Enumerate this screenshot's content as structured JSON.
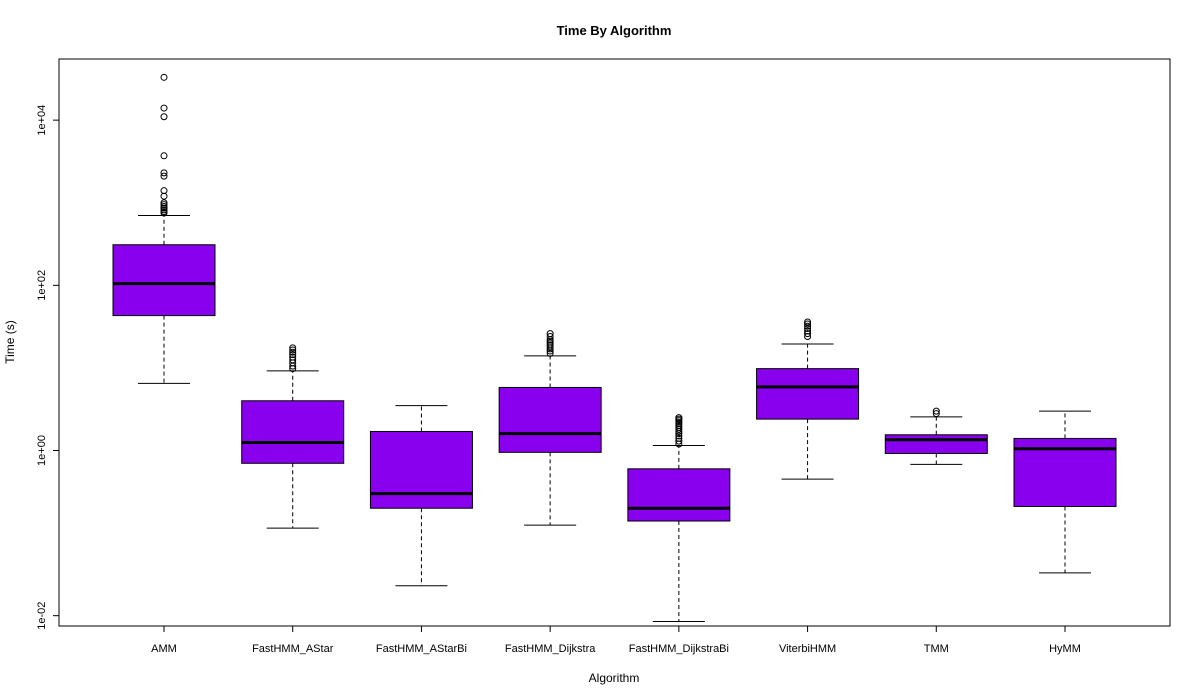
{
  "chart_data": {
    "type": "box",
    "title": "Time By Algorithm",
    "xlabel": "Algorithm",
    "ylabel": "Time (s)",
    "y_scale": "log10",
    "ylim": [
      0.0075,
      55000
    ],
    "y_ticks": [
      {
        "value": 0.01,
        "label": "1e-02"
      },
      {
        "value": 1,
        "label": "1e+00"
      },
      {
        "value": 100,
        "label": "1e+02"
      },
      {
        "value": 10000,
        "label": "1e+04"
      }
    ],
    "box_color": "#8800EE",
    "categories": [
      "AMM",
      "FastHMM_AStar",
      "FastHMM_AStarBi",
      "FastHMM_Dijkstra",
      "FastHMM_DijkstraBi",
      "ViterbiHMM",
      "TMM",
      "HyMM"
    ],
    "boxes": [
      {
        "name": "AMM",
        "whisker_low": 6.5,
        "q1": 43,
        "median": 105,
        "q3": 310,
        "whisker_high": 700,
        "outliers": [
          33000,
          14000,
          11000,
          3700,
          2300,
          2100,
          1400,
          1200,
          1000,
          950,
          900,
          860,
          820,
          780,
          750
        ]
      },
      {
        "name": "FastHMM_AStar",
        "whisker_low": 0.115,
        "q1": 0.7,
        "median": 1.25,
        "q3": 4.0,
        "whisker_high": 9.2,
        "outliers": [
          9.8,
          10.5,
          11.5,
          12.5,
          13.5,
          14.5,
          15.5,
          16.5,
          17.5
        ]
      },
      {
        "name": "FastHMM_AStarBi",
        "whisker_low": 0.023,
        "q1": 0.2,
        "median": 0.3,
        "q3": 1.7,
        "whisker_high": 3.5,
        "outliers": []
      },
      {
        "name": "FastHMM_Dijkstra",
        "whisker_low": 0.125,
        "q1": 0.95,
        "median": 1.6,
        "q3": 5.8,
        "whisker_high": 14,
        "outliers": [
          15,
          16,
          17,
          18,
          19,
          20,
          21,
          22,
          24,
          26
        ]
      },
      {
        "name": "FastHMM_DijkstraBi",
        "whisker_low": 0.0085,
        "q1": 0.14,
        "median": 0.2,
        "q3": 0.6,
        "whisker_high": 1.15,
        "outliers": [
          1.2,
          1.3,
          1.4,
          1.5,
          1.6,
          1.7,
          1.8,
          1.9,
          2.0,
          2.1,
          2.2,
          2.3,
          2.4,
          2.5
        ]
      },
      {
        "name": "ViterbiHMM",
        "whisker_low": 0.45,
        "q1": 2.4,
        "median": 5.9,
        "q3": 9.8,
        "whisker_high": 19.5,
        "outliers": [
          24,
          26,
          28,
          30,
          32,
          34,
          36
        ]
      },
      {
        "name": "TMM",
        "whisker_low": 0.68,
        "q1": 0.92,
        "median": 1.35,
        "q3": 1.55,
        "whisker_high": 2.55,
        "outliers": [
          2.8,
          3.0
        ]
      },
      {
        "name": "HyMM",
        "whisker_low": 0.033,
        "q1": 0.21,
        "median": 1.05,
        "q3": 1.4,
        "whisker_high": 3.0,
        "outliers": []
      }
    ]
  }
}
